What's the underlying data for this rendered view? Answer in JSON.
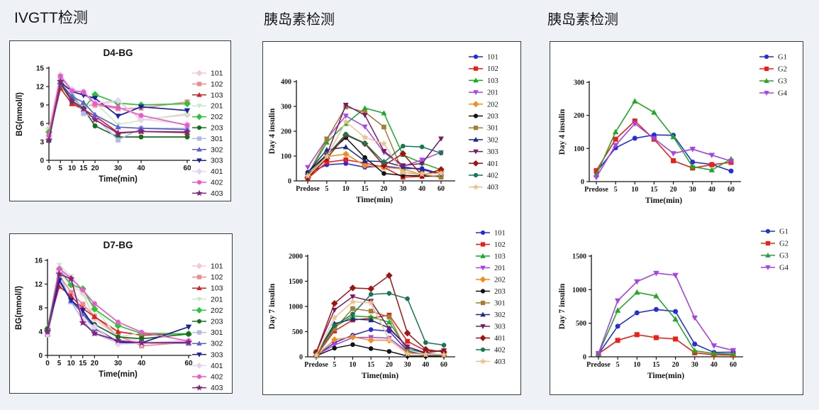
{
  "page": {
    "background": "#eef2f7",
    "panel_border": "#3a3a3a"
  },
  "headers": {
    "left": "IVGTT检测",
    "middle": "胰岛素检测",
    "right": "胰岛素检测"
  },
  "chart_data": [
    {
      "name": "d4-bg",
      "type": "line",
      "title": "D4-BG",
      "xlabel": "Time(min)",
      "ylabel": "BG(mmol/l)",
      "x_mode": "numeric",
      "x": [
        0,
        5,
        10,
        15,
        20,
        30,
        40,
        60
      ],
      "x_labels": [
        "0",
        "5",
        "10",
        "15",
        "20",
        "30",
        "40",
        "60"
      ],
      "ylim": [
        0,
        15
      ],
      "yticks": [
        0,
        3,
        6,
        9,
        12,
        15
      ],
      "grid": false,
      "legend_position": "right",
      "series": [
        {
          "name": "101",
          "color": "#F2CAD2",
          "marker": "diamond",
          "values": [
            5.2,
            13.9,
            11.5,
            11.0,
            9.0,
            9.6,
            6.6,
            7.4
          ]
        },
        {
          "name": "102",
          "color": "#EF8B8B",
          "marker": "square",
          "values": [
            4.0,
            13.6,
            9.2,
            8.9,
            9.0,
            8.4,
            8.5,
            9.5
          ]
        },
        {
          "name": "103",
          "color": "#DF1F1F",
          "marker": "triangle",
          "values": [
            3.8,
            11.7,
            9.2,
            8.3,
            7.2,
            4.5,
            4.7,
            4.5
          ]
        },
        {
          "name": "201",
          "color": "#CBEBC8",
          "marker": "tridown",
          "values": [
            3.3,
            12.9,
            10.4,
            8.6,
            9.4,
            5.8,
            6.5,
            7.6
          ]
        },
        {
          "name": "202",
          "color": "#2EC43A",
          "marker": "diamond",
          "values": [
            4.6,
            12.5,
            10.3,
            8.4,
            10.7,
            9.3,
            9.0,
            9.2
          ]
        },
        {
          "name": "203",
          "color": "#10701C",
          "marker": "circle",
          "values": [
            3.2,
            12.4,
            9.6,
            8.4,
            5.6,
            3.8,
            3.8,
            3.8
          ]
        },
        {
          "name": "301",
          "color": "#B2BAEC",
          "marker": "square",
          "values": [
            3.6,
            13.5,
            11.3,
            7.6,
            7.0,
            3.3,
            5.2,
            5.2
          ]
        },
        {
          "name": "302",
          "color": "#5A60D2",
          "marker": "triangle",
          "values": [
            3.5,
            12.5,
            10.4,
            9.4,
            7.4,
            5.4,
            5.2,
            5.0
          ]
        },
        {
          "name": "303",
          "color": "#1B1FA5",
          "marker": "tridown",
          "values": [
            3.7,
            12.7,
            11.2,
            10.6,
            10.1,
            7.2,
            8.7,
            8.1
          ]
        },
        {
          "name": "401",
          "color": "#E4D4F0",
          "marker": "diamond",
          "values": [
            3.9,
            13.9,
            11.4,
            11.2,
            9.3,
            9.7,
            6.7,
            5.9
          ]
        },
        {
          "name": "402",
          "color": "#EE58C8",
          "marker": "circle",
          "values": [
            4.0,
            13.7,
            11.3,
            11.1,
            9.2,
            8.6,
            7.3,
            5.7
          ]
        },
        {
          "name": "403",
          "color": "#86227E",
          "marker": "star",
          "values": [
            3.3,
            12.8,
            9.7,
            8.4,
            6.6,
            4.4,
            4.7,
            4.6
          ]
        }
      ]
    },
    {
      "name": "d7-bg",
      "type": "line",
      "title": "D7-BG",
      "xlabel": "Time(min)",
      "ylabel": "BG(mmol/l)",
      "x_mode": "numeric",
      "x": [
        0,
        5,
        10,
        15,
        20,
        30,
        40,
        60
      ],
      "x_labels": [
        "0",
        "5",
        "10",
        "15",
        "20",
        "30",
        "40",
        "60"
      ],
      "ylim": [
        0,
        16
      ],
      "yticks": [
        0,
        4,
        8,
        12,
        16
      ],
      "grid": false,
      "legend_position": "right",
      "series": [
        {
          "name": "101",
          "color": "#F2CAD2",
          "marker": "diamond",
          "values": [
            4.5,
            14.0,
            11.8,
            10.5,
            6.1,
            3.2,
            2.2,
            2.3
          ]
        },
        {
          "name": "102",
          "color": "#EF8B8B",
          "marker": "square",
          "values": [
            4.3,
            13.5,
            10.6,
            8.6,
            6.6,
            3.3,
            1.6,
            2.2
          ]
        },
        {
          "name": "103",
          "color": "#DF1F1F",
          "marker": "triangle",
          "values": [
            4.5,
            11.6,
            10.0,
            7.9,
            6.5,
            4.0,
            3.4,
            3.7
          ]
        },
        {
          "name": "201",
          "color": "#CBEBC8",
          "marker": "tridown",
          "values": [
            4.6,
            15.2,
            13.3,
            10.5,
            7.9,
            3.1,
            3.8,
            3.7
          ]
        },
        {
          "name": "202",
          "color": "#2EC43A",
          "marker": "diamond",
          "values": [
            4.4,
            14.5,
            11.9,
            11.2,
            7.8,
            5.0,
            3.7,
            3.6
          ]
        },
        {
          "name": "203",
          "color": "#10701C",
          "marker": "circle",
          "values": [
            4.5,
            12.8,
            9.3,
            7.0,
            5.2,
            3.1,
            2.8,
            3.6
          ]
        },
        {
          "name": "301",
          "color": "#B2BAEC",
          "marker": "square",
          "values": [
            3.5,
            13.8,
            9.0,
            5.9,
            3.7,
            2.1,
            2.1,
            2.0
          ]
        },
        {
          "name": "302",
          "color": "#5A60D2",
          "marker": "triangle",
          "values": [
            3.6,
            12.5,
            9.2,
            7.0,
            4.5,
            2.3,
            2.1,
            2.1
          ]
        },
        {
          "name": "303",
          "color": "#1B1FA5",
          "marker": "tridown",
          "values": [
            3.7,
            12.6,
            9.3,
            7.6,
            4.7,
            2.2,
            2.1,
            4.8
          ]
        },
        {
          "name": "401",
          "color": "#E4D4F0",
          "marker": "diamond",
          "values": [
            3.6,
            14.3,
            12.8,
            6.0,
            4.8,
            1.9,
            2.0,
            2.6
          ]
        },
        {
          "name": "402",
          "color": "#EE58C8",
          "marker": "circle",
          "values": [
            3.9,
            14.6,
            13.0,
            11.0,
            8.7,
            5.6,
            3.9,
            2.4
          ]
        },
        {
          "name": "403",
          "color": "#86227E",
          "marker": "star",
          "values": [
            4.0,
            13.7,
            12.9,
            5.5,
            3.7,
            2.5,
            2.1,
            2.2
          ]
        }
      ]
    },
    {
      "name": "day4-insulin-all",
      "type": "line",
      "title": "",
      "xlabel": "Time(min)",
      "ylabel": "Day 4 insulin",
      "x_mode": "categorical",
      "x_labels": [
        "Predose",
        "5",
        "10",
        "15",
        "20",
        "30",
        "40",
        "60"
      ],
      "ylim": [
        0,
        400
      ],
      "yticks": [
        0,
        100,
        200,
        300,
        400
      ],
      "grid": false,
      "legend_position": "right",
      "series": [
        {
          "name": "101",
          "color": "#2727E8",
          "marker": "circle",
          "values": [
            30,
            65,
            70,
            55,
            60,
            50,
            50,
            28
          ]
        },
        {
          "name": "102",
          "color": "#EE1C14",
          "marker": "square",
          "values": [
            10,
            75,
            85,
            72,
            55,
            15,
            18,
            20
          ]
        },
        {
          "name": "103",
          "color": "#14AD28",
          "marker": "triangle",
          "values": [
            22,
            155,
            230,
            293,
            273,
            105,
            72,
            45
          ]
        },
        {
          "name": "201",
          "color": "#A943F0",
          "marker": "tridown",
          "values": [
            55,
            170,
            262,
            218,
            115,
            58,
            85,
            115
          ]
        },
        {
          "name": "202",
          "color": "#F58C22",
          "marker": "diamond",
          "values": [
            15,
            98,
            108,
            62,
            55,
            48,
            25,
            38
          ]
        },
        {
          "name": "203",
          "color": "#121212",
          "marker": "circle",
          "values": [
            34,
            106,
            174,
            94,
            30,
            22,
            20,
            18
          ]
        },
        {
          "name": "301",
          "color": "#A67B33",
          "marker": "square",
          "values": [
            25,
            168,
            298,
            277,
            217,
            35,
            25,
            15
          ]
        },
        {
          "name": "302",
          "color": "#1B2B84",
          "marker": "triangle",
          "values": [
            34,
            125,
            136,
            80,
            78,
            57,
            45,
            28
          ]
        },
        {
          "name": "303",
          "color": "#7A1A66",
          "marker": "tridown",
          "values": [
            20,
            105,
            306,
            265,
            120,
            62,
            70,
            170
          ]
        },
        {
          "name": "401",
          "color": "#A31212",
          "marker": "diamond",
          "values": [
            12,
            90,
            185,
            150,
            62,
            110,
            22,
            46
          ]
        },
        {
          "name": "402",
          "color": "#157852",
          "marker": "circle",
          "values": [
            22,
            102,
            188,
            152,
            75,
            140,
            137,
            112
          ]
        },
        {
          "name": "403",
          "color": "#EDC28F",
          "marker": "star",
          "values": [
            20,
            98,
            238,
            175,
            150,
            35,
            28,
            30
          ]
        }
      ]
    },
    {
      "name": "day7-insulin-all",
      "type": "line",
      "title": "",
      "xlabel": "Time(min)",
      "ylabel": "Day 7 insulin",
      "x_mode": "categorical",
      "x_labels": [
        "Predose",
        "5",
        "10",
        "15",
        "20",
        "30",
        "40",
        "60"
      ],
      "ylim": [
        0,
        2000
      ],
      "yticks": [
        0,
        500,
        1000,
        1500,
        2000
      ],
      "grid": false,
      "legend_position": "right",
      "series": [
        {
          "name": "101",
          "color": "#2727E8",
          "marker": "circle",
          "values": [
            20,
            280,
            428,
            540,
            510,
            115,
            40,
            38
          ]
        },
        {
          "name": "102",
          "color": "#EE1C14",
          "marker": "square",
          "values": [
            20,
            512,
            730,
            768,
            828,
            307,
            120,
            108
          ]
        },
        {
          "name": "103",
          "color": "#14AD28",
          "marker": "triangle",
          "values": [
            30,
            590,
            809,
            791,
            688,
            150,
            80,
            135
          ]
        },
        {
          "name": "201",
          "color": "#A943F0",
          "marker": "tridown",
          "values": [
            30,
            233,
            381,
            386,
            372,
            100,
            35,
            30
          ]
        },
        {
          "name": "202",
          "color": "#F58C22",
          "marker": "diamond",
          "values": [
            20,
            340,
            395,
            330,
            330,
            80,
            30,
            30
          ]
        },
        {
          "name": "203",
          "color": "#121212",
          "marker": "circle",
          "values": [
            18,
            172,
            242,
            163,
            107,
            15,
            12,
            18
          ]
        },
        {
          "name": "301",
          "color": "#A67B33",
          "marker": "square",
          "values": [
            28,
            550,
            958,
            907,
            790,
            90,
            50,
            28
          ]
        },
        {
          "name": "302",
          "color": "#1B2B84",
          "marker": "triangle",
          "values": [
            40,
            660,
            749,
            730,
            572,
            200,
            60,
            40
          ]
        },
        {
          "name": "303",
          "color": "#7A1A66",
          "marker": "tridown",
          "values": [
            92,
            930,
            1195,
            1107,
            556,
            200,
            80,
            125
          ]
        },
        {
          "name": "401",
          "color": "#A31212",
          "marker": "diamond",
          "values": [
            90,
            1060,
            1368,
            1350,
            1615,
            470,
            148,
            95
          ]
        },
        {
          "name": "402",
          "color": "#157852",
          "marker": "circle",
          "values": [
            30,
            620,
            850,
            1240,
            1260,
            1152,
            283,
            232
          ]
        },
        {
          "name": "403",
          "color": "#EDC28F",
          "marker": "star",
          "values": [
            28,
            777,
            1092,
            1070,
            337,
            58,
            48,
            40
          ]
        }
      ]
    },
    {
      "name": "day4-insulin-groups",
      "type": "line",
      "title": "",
      "xlabel": "Time(min)",
      "ylabel": "Day 4 insulin",
      "x_mode": "categorical",
      "x_labels": [
        "Predose",
        "5",
        "10",
        "15",
        "20",
        "30",
        "40",
        "60"
      ],
      "ylim": [
        0,
        300
      ],
      "yticks": [
        0,
        100,
        200,
        300
      ],
      "grid": false,
      "legend_position": "right",
      "series": [
        {
          "name": "G1",
          "color": "#2330D6",
          "marker": "circle",
          "values": [
            28,
            102,
            131,
            141,
            140,
            59,
            52,
            32
          ]
        },
        {
          "name": "G2",
          "color": "#EE2016",
          "marker": "square",
          "values": [
            33,
            128,
            183,
            128,
            63,
            41,
            51,
            58
          ]
        },
        {
          "name": "G3",
          "color": "#23A823",
          "marker": "triangle",
          "values": [
            20,
            150,
            243,
            209,
            135,
            45,
            35,
            68
          ]
        },
        {
          "name": "G4",
          "color": "#A841E6",
          "marker": "tridown",
          "values": [
            13,
            110,
            175,
            130,
            85,
            98,
            80,
            62
          ]
        }
      ]
    },
    {
      "name": "day7-insulin-groups",
      "type": "line",
      "title": "",
      "xlabel": "Time(min)",
      "ylabel": "Day 7 insulin",
      "x_mode": "categorical",
      "x_labels": [
        "Predose",
        "5",
        "10",
        "15",
        "20",
        "30",
        "40",
        "60"
      ],
      "ylim": [
        0,
        1500
      ],
      "yticks": [
        0,
        500,
        1000,
        1500
      ],
      "grid": false,
      "legend_position": "right",
      "series": [
        {
          "name": "G1",
          "color": "#2330D6",
          "marker": "circle",
          "values": [
            40,
            455,
            655,
            705,
            675,
            190,
            65,
            70
          ]
        },
        {
          "name": "G2",
          "color": "#EE2016",
          "marker": "square",
          "values": [
            45,
            245,
            330,
            285,
            265,
            60,
            30,
            25
          ]
        },
        {
          "name": "G3",
          "color": "#23A823",
          "marker": "triangle",
          "values": [
            45,
            690,
            960,
            905,
            560,
            90,
            50,
            40
          ]
        },
        {
          "name": "G4",
          "color": "#A841E6",
          "marker": "tridown",
          "values": [
            50,
            835,
            1120,
            1245,
            1215,
            580,
            165,
            95
          ]
        }
      ]
    }
  ]
}
